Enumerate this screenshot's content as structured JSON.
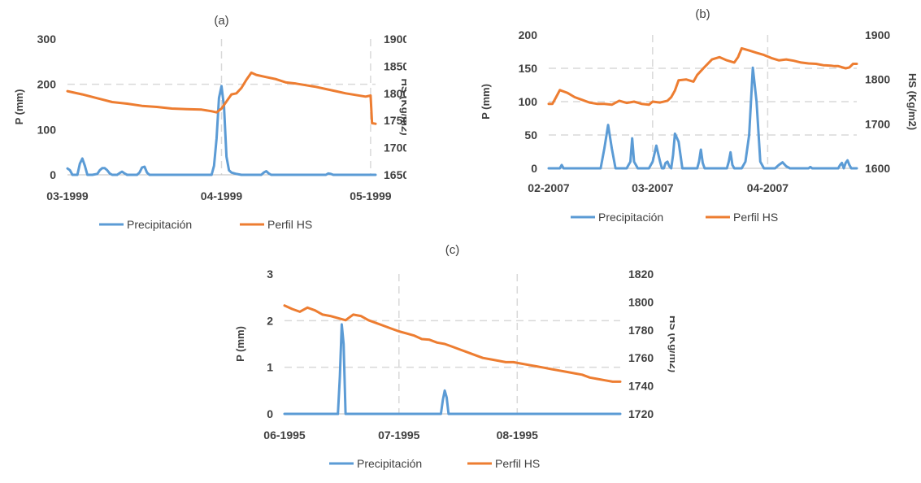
{
  "colors": {
    "precip": "#5b9bd5",
    "hs": "#ed7d31",
    "text": "#404040",
    "grid": "#d9d9d9"
  },
  "chart_data": [
    {
      "id": "a",
      "type": "line",
      "title": "(a)",
      "ylabel": "P (mm)",
      "y2label": "HS (Kg/m2)",
      "xlim": [
        0,
        62
      ],
      "ylim": [
        0,
        300
      ],
      "y2lim": [
        1650,
        1900
      ],
      "yticks": [
        "0",
        "100",
        "200",
        "300"
      ],
      "y2ticks": [
        "1650",
        "1700",
        "1750",
        "1800",
        "1850",
        "1900"
      ],
      "xticks": [
        {
          "x": 0,
          "label": "03-1999"
        },
        {
          "x": 31,
          "label": "04-1999"
        },
        {
          "x": 61,
          "label": "05-1999"
        }
      ],
      "hgrid": [
        200
      ],
      "legend": [
        "Precipitación",
        "Perfil HS"
      ],
      "series": [
        {
          "name": "Precipitación",
          "axis": "left",
          "points": [
            [
              0,
              14
            ],
            [
              0.5,
              10
            ],
            [
              1,
              0
            ],
            [
              2,
              0
            ],
            [
              2.5,
              25
            ],
            [
              3,
              36
            ],
            [
              3.5,
              20
            ],
            [
              4,
              0
            ],
            [
              5,
              0
            ],
            [
              6,
              2
            ],
            [
              6.5,
              10
            ],
            [
              7,
              15
            ],
            [
              7.5,
              15
            ],
            [
              8,
              10
            ],
            [
              8.5,
              3
            ],
            [
              9,
              0
            ],
            [
              10,
              0
            ],
            [
              10.5,
              4
            ],
            [
              11,
              7
            ],
            [
              11.5,
              3
            ],
            [
              12,
              0
            ],
            [
              14,
              0
            ],
            [
              14.5,
              5
            ],
            [
              15,
              16
            ],
            [
              15.5,
              18
            ],
            [
              16,
              5
            ],
            [
              16.5,
              0
            ],
            [
              29,
              0
            ],
            [
              29.5,
              20
            ],
            [
              30,
              80
            ],
            [
              30.5,
              170
            ],
            [
              31,
              196
            ],
            [
              31.5,
              150
            ],
            [
              32,
              40
            ],
            [
              32.5,
              10
            ],
            [
              33,
              5
            ],
            [
              34,
              2
            ],
            [
              35,
              0
            ],
            [
              39,
              0
            ],
            [
              39.5,
              5
            ],
            [
              40,
              8
            ],
            [
              40.5,
              3
            ],
            [
              41,
              0
            ],
            [
              52,
              0
            ],
            [
              52.5,
              3
            ],
            [
              53,
              2
            ],
            [
              53.5,
              0
            ],
            [
              62,
              0
            ]
          ]
        },
        {
          "name": "Perfil HS",
          "axis": "right",
          "points": [
            [
              0,
              1804
            ],
            [
              3,
              1798
            ],
            [
              6,
              1791
            ],
            [
              9,
              1784
            ],
            [
              12,
              1781
            ],
            [
              15,
              1777
            ],
            [
              18,
              1775
            ],
            [
              21,
              1772
            ],
            [
              24,
              1771
            ],
            [
              27,
              1770
            ],
            [
              29,
              1767
            ],
            [
              30,
              1765
            ],
            [
              31,
              1772
            ],
            [
              32,
              1785
            ],
            [
              33,
              1798
            ],
            [
              34,
              1800
            ],
            [
              35,
              1810
            ],
            [
              36,
              1825
            ],
            [
              37,
              1838
            ],
            [
              38,
              1834
            ],
            [
              40,
              1830
            ],
            [
              42,
              1826
            ],
            [
              44,
              1820
            ],
            [
              46,
              1818
            ],
            [
              48,
              1815
            ],
            [
              50,
              1812
            ],
            [
              52,
              1808
            ],
            [
              54,
              1804
            ],
            [
              56,
              1800
            ],
            [
              58,
              1797
            ],
            [
              60,
              1794
            ],
            [
              61,
              1796
            ],
            [
              61.3,
              1745
            ],
            [
              62,
              1744
            ]
          ]
        }
      ]
    },
    {
      "id": "b",
      "type": "line",
      "title": "(b)",
      "ylabel": "P (mm)",
      "y2label": "HS (Kg/m2)",
      "xlim": [
        0,
        83
      ],
      "ylim": [
        0,
        200
      ],
      "y2lim": [
        1600,
        1900
      ],
      "yticks": [
        "0",
        "50",
        "100",
        "150",
        "200"
      ],
      "y2ticks": [
        "1600",
        "1700",
        "1800",
        "1900"
      ],
      "xticks": [
        {
          "x": 0,
          "label": "02-2007"
        },
        {
          "x": 28,
          "label": "03-2007"
        },
        {
          "x": 59,
          "label": "04-2007"
        }
      ],
      "hgrid": [
        50,
        100,
        150
      ],
      "legend": [
        "Precipitación",
        "Perfil HS"
      ],
      "series": [
        {
          "name": "Precipitación",
          "axis": "left",
          "points": [
            [
              0,
              0
            ],
            [
              3,
              0
            ],
            [
              3.5,
              5
            ],
            [
              4,
              0
            ],
            [
              14,
              0
            ],
            [
              15,
              30
            ],
            [
              16,
              65
            ],
            [
              17,
              30
            ],
            [
              18,
              0
            ],
            [
              21,
              0
            ],
            [
              22,
              10
            ],
            [
              22.5,
              45
            ],
            [
              23,
              10
            ],
            [
              24,
              0
            ],
            [
              27,
              0
            ],
            [
              28,
              10
            ],
            [
              29,
              34
            ],
            [
              30,
              10
            ],
            [
              30.5,
              0
            ],
            [
              31,
              0
            ],
            [
              31.5,
              8
            ],
            [
              32,
              10
            ],
            [
              32.5,
              3
            ],
            [
              33,
              0
            ],
            [
              33.5,
              20
            ],
            [
              34,
              52
            ],
            [
              35,
              40
            ],
            [
              36,
              0
            ],
            [
              40,
              0
            ],
            [
              40.5,
              10
            ],
            [
              41,
              28
            ],
            [
              41.5,
              8
            ],
            [
              42,
              0
            ],
            [
              48,
              0
            ],
            [
              48.5,
              10
            ],
            [
              49,
              24
            ],
            [
              49.5,
              5
            ],
            [
              50,
              0
            ],
            [
              52,
              0
            ],
            [
              53,
              10
            ],
            [
              54,
              50
            ],
            [
              55,
              151
            ],
            [
              56,
              100
            ],
            [
              57,
              10
            ],
            [
              58,
              0
            ],
            [
              61,
              0
            ],
            [
              62,
              5
            ],
            [
              63,
              9
            ],
            [
              64,
              3
            ],
            [
              65,
              0
            ],
            [
              70,
              0
            ],
            [
              70.5,
              2
            ],
            [
              71,
              0
            ],
            [
              78,
              0
            ],
            [
              78.5,
              5
            ],
            [
              79,
              8
            ],
            [
              79.5,
              0
            ],
            [
              80,
              8
            ],
            [
              80.5,
              12
            ],
            [
              81,
              5
            ],
            [
              81.5,
              0
            ],
            [
              83,
              0
            ]
          ]
        },
        {
          "name": "Perfil HS",
          "axis": "right",
          "points": [
            [
              0,
              1745
            ],
            [
              1,
              1745
            ],
            [
              2,
              1760
            ],
            [
              3,
              1776
            ],
            [
              5,
              1770
            ],
            [
              7,
              1760
            ],
            [
              9,
              1754
            ],
            [
              11,
              1748
            ],
            [
              13,
              1745
            ],
            [
              15,
              1745
            ],
            [
              17,
              1743
            ],
            [
              19,
              1752
            ],
            [
              21,
              1747
            ],
            [
              23,
              1750
            ],
            [
              25,
              1745
            ],
            [
              27,
              1743
            ],
            [
              28,
              1750
            ],
            [
              30,
              1748
            ],
            [
              32,
              1752
            ],
            [
              33,
              1760
            ],
            [
              34,
              1775
            ],
            [
              35,
              1798
            ],
            [
              37,
              1800
            ],
            [
              39,
              1795
            ],
            [
              40,
              1810
            ],
            [
              42,
              1828
            ],
            [
              44,
              1845
            ],
            [
              46,
              1850
            ],
            [
              48,
              1843
            ],
            [
              50,
              1838
            ],
            [
              51,
              1850
            ],
            [
              52,
              1870
            ],
            [
              54,
              1865
            ],
            [
              56,
              1860
            ],
            [
              58,
              1855
            ],
            [
              60,
              1848
            ],
            [
              62,
              1843
            ],
            [
              64,
              1845
            ],
            [
              66,
              1842
            ],
            [
              68,
              1838
            ],
            [
              70,
              1836
            ],
            [
              72,
              1835
            ],
            [
              74,
              1832
            ],
            [
              76,
              1831
            ],
            [
              77,
              1830
            ],
            [
              78,
              1830
            ],
            [
              80,
              1825
            ],
            [
              81,
              1827
            ],
            [
              82,
              1835
            ],
            [
              83,
              1835
            ]
          ]
        }
      ]
    },
    {
      "id": "c",
      "type": "line",
      "title": "(c)",
      "ylabel": "P (mm)",
      "y2label": "HS (Kg/m2)",
      "xlim": [
        0,
        88
      ],
      "ylim": [
        0,
        3
      ],
      "y2lim": [
        1720,
        1820
      ],
      "yticks": [
        "0",
        "1",
        "2",
        "3"
      ],
      "y2ticks": [
        "1720",
        "1740",
        "1760",
        "1780",
        "1800",
        "1820"
      ],
      "xticks": [
        {
          "x": 0,
          "label": "06-1995"
        },
        {
          "x": 30,
          "label": "07-1995"
        },
        {
          "x": 61,
          "label": "08-1995"
        }
      ],
      "hgrid": [
        1,
        2
      ],
      "legend": [
        "Precipitación",
        "Perfil HS"
      ],
      "series": [
        {
          "name": "Precipitación",
          "axis": "left",
          "points": [
            [
              0,
              0
            ],
            [
              14,
              0
            ],
            [
              14.5,
              0.8
            ],
            [
              15,
              1.92
            ],
            [
              15.5,
              1.5
            ],
            [
              16,
              0
            ],
            [
              41,
              0
            ],
            [
              41.5,
              0.3
            ],
            [
              42,
              0.5
            ],
            [
              42.5,
              0.35
            ],
            [
              43,
              0
            ],
            [
              88,
              0
            ]
          ]
        },
        {
          "name": "Perfil HS",
          "axis": "right",
          "points": [
            [
              0,
              1797.5
            ],
            [
              2,
              1795
            ],
            [
              4,
              1793
            ],
            [
              6,
              1796
            ],
            [
              8,
              1794
            ],
            [
              10,
              1791
            ],
            [
              12,
              1790
            ],
            [
              14,
              1788.5
            ],
            [
              16,
              1787
            ],
            [
              18,
              1791
            ],
            [
              20,
              1790
            ],
            [
              22,
              1787
            ],
            [
              24,
              1785
            ],
            [
              26,
              1783
            ],
            [
              28,
              1781
            ],
            [
              30,
              1779
            ],
            [
              32,
              1777.5
            ],
            [
              34,
              1776
            ],
            [
              36,
              1773.5
            ],
            [
              38,
              1773
            ],
            [
              40,
              1771
            ],
            [
              42,
              1770
            ],
            [
              44,
              1768
            ],
            [
              46,
              1766
            ],
            [
              48,
              1764
            ],
            [
              50,
              1762
            ],
            [
              52,
              1760
            ],
            [
              54,
              1759
            ],
            [
              56,
              1758
            ],
            [
              58,
              1757
            ],
            [
              60,
              1757
            ],
            [
              62,
              1756
            ],
            [
              64,
              1755
            ],
            [
              66,
              1754
            ],
            [
              68,
              1753
            ],
            [
              70,
              1752
            ],
            [
              72,
              1751
            ],
            [
              74,
              1750
            ],
            [
              76,
              1749
            ],
            [
              78,
              1748
            ],
            [
              80,
              1746
            ],
            [
              82,
              1745
            ],
            [
              84,
              1744
            ],
            [
              86,
              1743
            ],
            [
              88,
              1743
            ]
          ]
        }
      ]
    }
  ]
}
